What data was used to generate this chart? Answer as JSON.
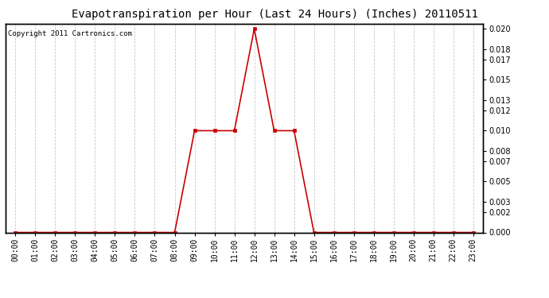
{
  "title": "Evapotranspiration per Hour (Last 24 Hours) (Inches) 20110511",
  "copyright": "Copyright 2011 Cartronics.com",
  "hours": [
    "00:00",
    "01:00",
    "02:00",
    "03:00",
    "04:00",
    "05:00",
    "06:00",
    "07:00",
    "08:00",
    "09:00",
    "10:00",
    "11:00",
    "12:00",
    "13:00",
    "14:00",
    "15:00",
    "16:00",
    "17:00",
    "18:00",
    "19:00",
    "20:00",
    "21:00",
    "22:00",
    "23:00"
  ],
  "values": [
    0.0,
    0.0,
    0.0,
    0.0,
    0.0,
    0.0,
    0.0,
    0.0,
    0.0,
    0.01,
    0.01,
    0.01,
    0.02,
    0.01,
    0.01,
    0.0,
    0.0,
    0.0,
    0.0,
    0.0,
    0.0,
    0.0,
    0.0,
    0.0
  ],
  "line_color": "#cc0000",
  "marker": "s",
  "marker_size": 2.5,
  "background_color": "#ffffff",
  "plot_bg_color": "#ffffff",
  "grid_color": "#c8c8c8",
  "title_fontsize": 10,
  "tick_fontsize": 7,
  "copyright_fontsize": 6.5,
  "ylim": [
    0.0,
    0.0205
  ],
  "yticks": [
    0.0,
    0.002,
    0.003,
    0.005,
    0.007,
    0.008,
    0.01,
    0.012,
    0.013,
    0.015,
    0.017,
    0.018,
    0.02
  ]
}
